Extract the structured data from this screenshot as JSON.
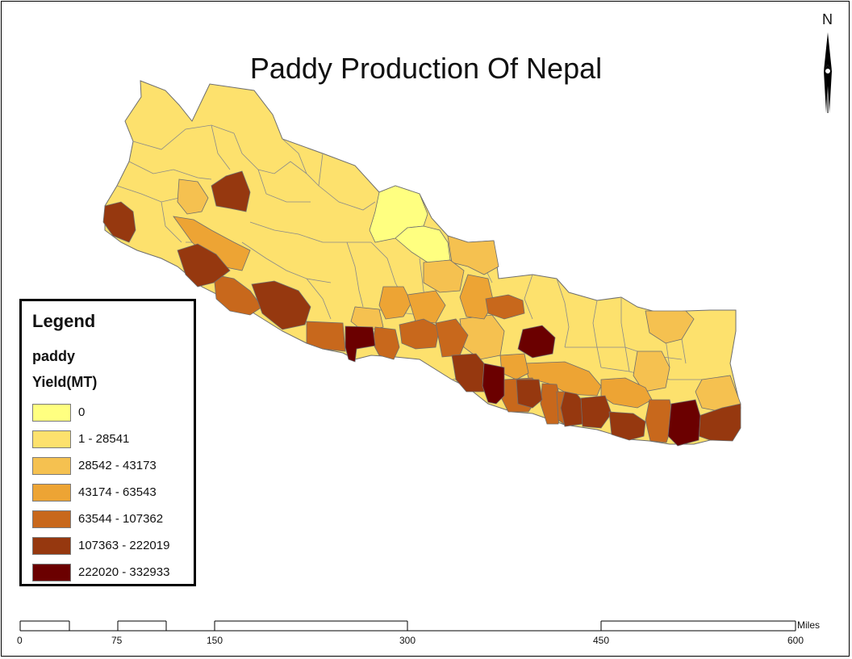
{
  "title": "Paddy Production Of Nepal",
  "north_label": "N",
  "legend": {
    "title": "Legend",
    "layer": "paddy",
    "field": "Yield(MT)",
    "classes": [
      {
        "label": "0",
        "color": "#ffff80"
      },
      {
        "label": "1 - 28541",
        "color": "#fde16d"
      },
      {
        "label": "28542 - 43173",
        "color": "#f5c150"
      },
      {
        "label": "43174 - 63543",
        "color": "#eda434"
      },
      {
        "label": "63544 - 107362",
        "color": "#c8681c"
      },
      {
        "label": "107363 - 222019",
        "color": "#96380f"
      },
      {
        "label": "222020 - 332933",
        "color": "#6b0000"
      }
    ]
  },
  "scale_bar": {
    "unit": "Miles",
    "ticks": [
      "0",
      "75",
      "150",
      "300",
      "450",
      "600"
    ]
  },
  "colors": {
    "border": "#6e6e6e",
    "frame": "#000000"
  }
}
